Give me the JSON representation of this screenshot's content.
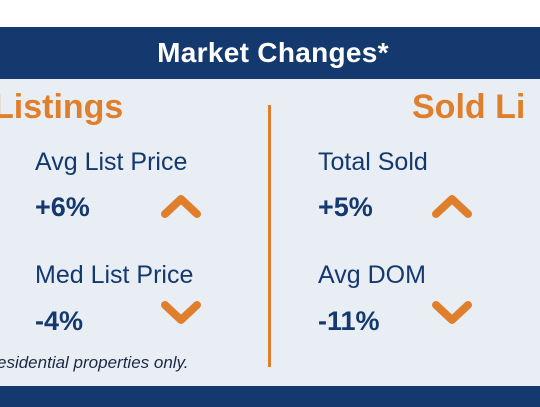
{
  "header": {
    "title": "Market Changes*"
  },
  "sections": {
    "listings": {
      "title": "Listings"
    },
    "sold": {
      "title": "Sold Li"
    }
  },
  "stats": {
    "avg_list_price": {
      "label": "Avg List Price",
      "value": "+6%",
      "direction": "up",
      "icon": "chevron-up-icon"
    },
    "med_list_price": {
      "label": "Med List Price",
      "value": "-4%",
      "direction": "down",
      "icon": "chevron-down-icon"
    },
    "total_sold": {
      "label": "Total Sold",
      "value": "+5%",
      "direction": "up",
      "icon": "chevron-up-icon"
    },
    "avg_dom": {
      "label": "Avg DOM",
      "value": "-11%",
      "direction": "down",
      "icon": "chevron-down-icon"
    }
  },
  "footnote": "esidential properties only.",
  "colors": {
    "navy": "#14396e",
    "orange": "#e07f2b",
    "panel_bg": "#e9eef5"
  }
}
